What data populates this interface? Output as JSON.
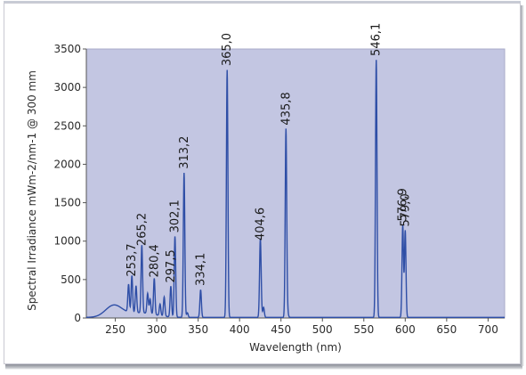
{
  "chart_data": {
    "type": "line",
    "title": "",
    "xlabel": "Wavelength (nm)",
    "ylabel": "Spectral Irradiance mWm-2/nm-1 @ 300 mm",
    "xlim": [
      215,
      720
    ],
    "ylim": [
      0,
      3500
    ],
    "x_ticks": [
      250,
      300,
      350,
      400,
      450,
      500,
      550,
      600,
      650,
      700
    ],
    "y_ticks": [
      0,
      500,
      1000,
      1500,
      2000,
      2500,
      3000,
      3500
    ],
    "grid": false,
    "colors": {
      "plot_background": "#c3c6e2",
      "line": "#2e4ea6"
    },
    "peaks": [
      {
        "label": "253,7",
        "x": 270,
        "y": 480
      },
      {
        "label": "265,2",
        "x": 282,
        "y": 880
      },
      {
        "label": "280,4",
        "x": 297,
        "y": 470
      },
      {
        "label": "297,5",
        "x": 317,
        "y": 400
      },
      {
        "label": "302,1",
        "x": 322,
        "y": 1050
      },
      {
        "label": "313,2",
        "x": 333,
        "y": 1880
      },
      {
        "label": "334,1",
        "x": 353,
        "y": 360
      },
      {
        "label": "365,0",
        "x": 385,
        "y": 3220
      },
      {
        "label": "404,6",
        "x": 425,
        "y": 950
      },
      {
        "label": "435,8",
        "x": 456,
        "y": 2450
      },
      {
        "label": "546,1",
        "x": 565,
        "y": 3350
      },
      {
        "label": "576,9",
        "x": 597,
        "y": 1200
      },
      {
        "label": "579,0",
        "x": 600,
        "y": 1130
      }
    ],
    "minor_peaks": [
      {
        "x": 266,
        "y": 360
      },
      {
        "x": 275,
        "y": 350
      },
      {
        "x": 289,
        "y": 260
      },
      {
        "x": 292,
        "y": 190
      },
      {
        "x": 304,
        "y": 150
      },
      {
        "x": 309,
        "y": 250
      },
      {
        "x": 337,
        "y": 60
      },
      {
        "x": 426,
        "y": 140
      },
      {
        "x": 429,
        "y": 130
      },
      {
        "x": 458,
        "y": 70
      }
    ]
  }
}
